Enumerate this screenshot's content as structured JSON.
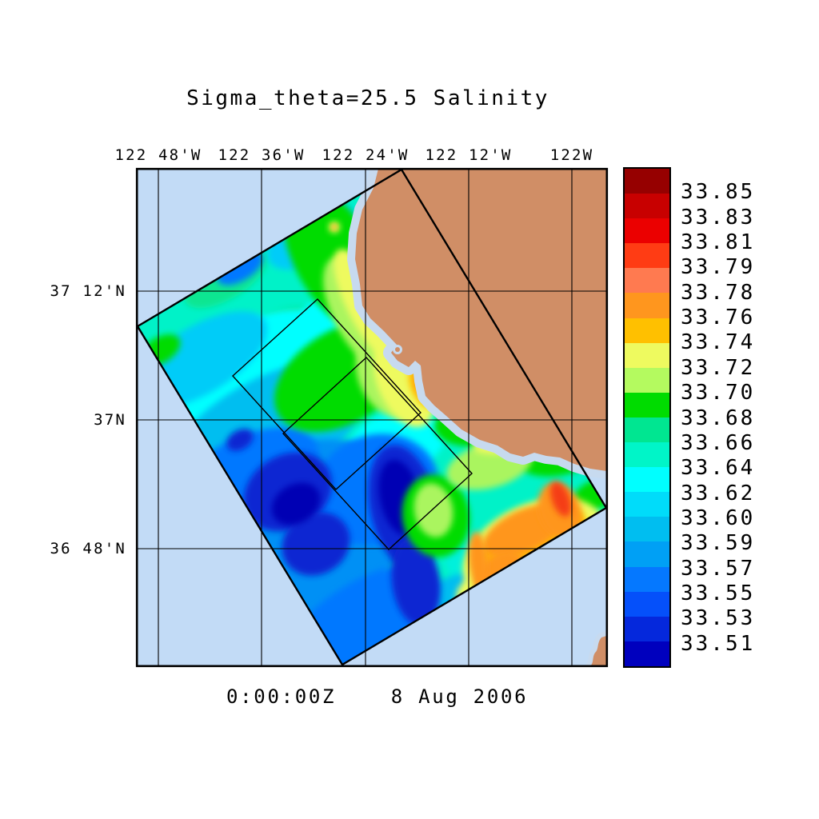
{
  "title": "Sigma_theta=25.5 Salinity",
  "timestamp": "0:00:00Z    8 Aug 2006",
  "axes": {
    "top_ticks": [
      "122 48'W",
      "122 36'W",
      "122 24'W",
      "122 12'W",
      "122W"
    ],
    "left_ticks": [
      "37 12'N",
      "37N",
      "36 48'N"
    ]
  },
  "colorbar": {
    "labels": [
      "33.85",
      "33.83",
      "33.81",
      "33.79",
      "33.78",
      "33.76",
      "33.74",
      "33.72",
      "33.70",
      "33.68",
      "33.66",
      "33.64",
      "33.62",
      "33.60",
      "33.59",
      "33.57",
      "33.55",
      "33.53",
      "33.51"
    ],
    "colors": [
      "#960000",
      "#C80000",
      "#EB0000",
      "#FF3C14",
      "#FF7A50",
      "#FF961E",
      "#FFC000",
      "#EEFA5F",
      "#B4FA5F",
      "#00DC00",
      "#00E691",
      "#00F5C8",
      "#00FFFF",
      "#00DCFA",
      "#00BEF0",
      "#00A0F5",
      "#0578FF",
      "#0550FA",
      "#0528DC",
      "#0000BE"
    ]
  },
  "chart_data": {
    "type": "heatmap",
    "title": "Sigma_theta=25.5 Salinity",
    "datetime_label": "0:00:00Z 8 Aug 2006",
    "x_tick_labels": [
      "122 48'W",
      "122 36'W",
      "122 24'W",
      "122 12'W",
      "122W"
    ],
    "y_tick_labels": [
      "37 12'N",
      "37N",
      "36 48'N"
    ],
    "colorbar_levels": [
      33.85,
      33.83,
      33.81,
      33.79,
      33.78,
      33.76,
      33.74,
      33.72,
      33.7,
      33.68,
      33.66,
      33.64,
      33.62,
      33.6,
      33.59,
      33.57,
      33.55,
      33.53,
      33.51
    ],
    "colorbar_colors": [
      "#960000",
      "#C80000",
      "#EB0000",
      "#FF3C14",
      "#FF7A50",
      "#FF961E",
      "#FFC000",
      "#EEFA5F",
      "#B4FA5F",
      "#00DC00",
      "#00E691",
      "#00F5C8",
      "#00FFFF",
      "#00DCFA",
      "#00BEF0",
      "#00A0F5",
      "#0578FF",
      "#0550FA",
      "#0528DC",
      "#0000BE"
    ],
    "legend_position": "right",
    "grid": true,
    "description": "Contoured salinity on the sigma_theta=25.5 density surface inside a rotated survey swath off the central California coast (Monterey Bay). Lowest salinity (~33.51, dark blue) offshore core; highest (~33.76-33.78, orange/red) nearshore to the southeast. Two smaller rotated survey boxes outlined inside the swath.",
    "land_color": "#D08E66",
    "ocean_color": "#C2DBF6"
  }
}
